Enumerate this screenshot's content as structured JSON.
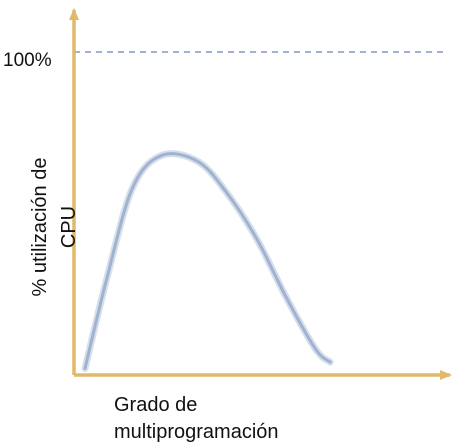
{
  "chart_data": {
    "type": "line",
    "title": "",
    "xlabel_lines": [
      "Grado de",
      "multiprogramación"
    ],
    "ylabel_lines": [
      "% utilización de",
      "CPU"
    ],
    "reference_line": {
      "label": "100%",
      "value": 100
    },
    "ylim": [
      0,
      100
    ],
    "xlim": [
      0,
      10
    ],
    "grid": false,
    "legend": "none",
    "series": [
      {
        "x": [
          0.3,
          0.9,
          1.6,
          2.4,
          3.4,
          4.2,
          5.0,
          5.8,
          6.6,
          7.0
        ],
        "y": [
          2,
          30,
          58,
          68,
          66,
          56,
          42,
          24,
          8,
          4
        ]
      }
    ],
    "colors": {
      "axis": "#e0b96a",
      "curve": "#9fb2cf",
      "reference_line": "#9fb2cf"
    }
  }
}
